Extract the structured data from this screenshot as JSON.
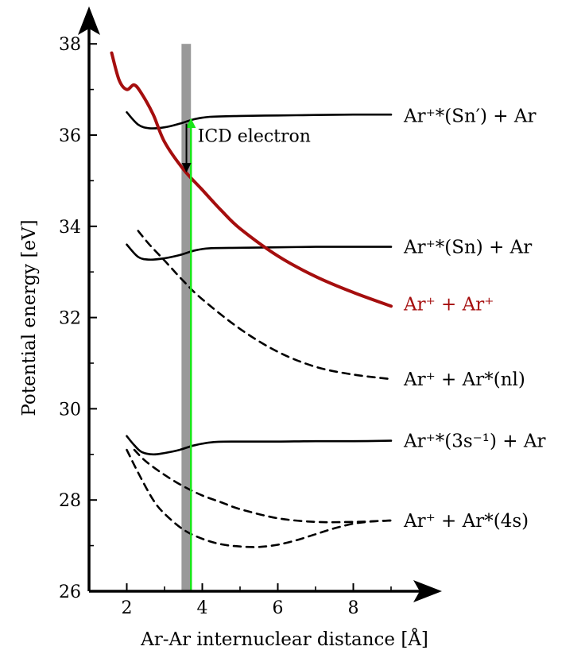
{
  "chart_data": {
    "type": "line",
    "title": "",
    "xlabel": "Ar-Ar internuclear distance [Å]",
    "ylabel": "Potential energy [eV]",
    "xlim": [
      1.0,
      9.8
    ],
    "ylim": [
      26,
      38.4
    ],
    "xticks": [
      2,
      4,
      6,
      8
    ],
    "yticks": [
      26,
      28,
      30,
      32,
      34,
      36,
      38
    ],
    "grid": false,
    "legend": "none",
    "colors": {
      "black": "#000000",
      "red": "#a50e0e",
      "band": "#999999",
      "arrow": "#19e619"
    },
    "series": [
      {
        "name": "Ar⁺* (Sn′) + Ar",
        "style": "solid",
        "color": "#000000",
        "x": [
          2.0,
          2.3,
          2.6,
          3.0,
          3.4,
          3.8,
          4.2,
          5.0,
          6.0,
          7.0,
          8.0,
          9.0
        ],
        "y": [
          36.5,
          36.23,
          36.15,
          36.17,
          36.25,
          36.35,
          36.4,
          36.42,
          36.43,
          36.44,
          36.45,
          36.45
        ]
      },
      {
        "name": "Ar⁺* (Sn) + Ar",
        "style": "solid",
        "color": "#000000",
        "x": [
          2.0,
          2.3,
          2.6,
          3.0,
          3.4,
          3.8,
          4.2,
          5.0,
          6.0,
          7.0,
          8.0,
          9.0
        ],
        "y": [
          33.6,
          33.33,
          33.27,
          33.3,
          33.37,
          33.47,
          33.52,
          33.53,
          33.54,
          33.55,
          33.55,
          33.55
        ]
      },
      {
        "name": "Ar⁺ + Ar⁺",
        "style": "solid",
        "color": "#a50e0e",
        "x": [
          1.6,
          1.8,
          2.0,
          2.2,
          2.4,
          2.7,
          3.0,
          3.5,
          4.0,
          4.5,
          5.0,
          6.0,
          7.0,
          8.0,
          9.0
        ],
        "y": [
          37.8,
          37.2,
          37.0,
          37.1,
          36.9,
          36.45,
          35.85,
          35.25,
          34.8,
          34.35,
          33.95,
          33.35,
          32.9,
          32.55,
          32.25
        ]
      },
      {
        "name": "Ar⁺ + Ar*(nl)",
        "style": "dashed",
        "color": "#000000",
        "x": [
          2.3,
          2.6,
          3.0,
          3.5,
          4.0,
          5.0,
          6.0,
          7.0,
          8.0,
          9.0
        ],
        "y": [
          33.9,
          33.6,
          33.25,
          32.8,
          32.4,
          31.75,
          31.25,
          30.92,
          30.75,
          30.65
        ]
      },
      {
        "name": "Ar⁺* (3s⁻¹) + Ar",
        "style": "solid",
        "color": "#000000",
        "x": [
          2.0,
          2.2,
          2.4,
          2.7,
          3.0,
          3.4,
          3.8,
          4.3,
          5.0,
          6.0,
          7.0,
          8.0,
          9.0
        ],
        "y": [
          29.4,
          29.2,
          29.05,
          29.0,
          29.03,
          29.1,
          29.2,
          29.27,
          29.28,
          29.28,
          29.29,
          29.29,
          29.3
        ]
      },
      {
        "name": "Ar⁺ + Ar*(4s) upper",
        "style": "dashed",
        "color": "#000000",
        "x": [
          2.2,
          2.5,
          3.0,
          3.5,
          4.0,
          4.5,
          5.0,
          6.0,
          7.0,
          8.0,
          9.0
        ],
        "y": [
          29.1,
          28.85,
          28.55,
          28.3,
          28.1,
          27.95,
          27.8,
          27.6,
          27.52,
          27.52,
          27.55
        ]
      },
      {
        "name": "Ar⁺ + Ar*(4s) lower",
        "style": "dashed",
        "color": "#000000",
        "x": [
          2.0,
          2.3,
          2.7,
          3.0,
          3.5,
          4.0,
          4.5,
          5.0,
          5.5,
          6.0,
          6.5,
          7.0,
          7.5,
          8.0,
          8.5,
          9.0
        ],
        "y": [
          29.1,
          28.6,
          28.0,
          27.7,
          27.35,
          27.15,
          27.03,
          26.98,
          26.97,
          27.02,
          27.12,
          27.25,
          27.38,
          27.48,
          27.53,
          27.55
        ]
      }
    ],
    "band": {
      "x_from": 3.45,
      "x_to": 3.7,
      "y_from": 26,
      "y_to": 38.0
    },
    "green_arrow": {
      "x": 3.7,
      "y_from": 26,
      "y_to": 36.35
    },
    "black_arrow": {
      "x": 3.58,
      "y_from": 36.25,
      "y_to": 35.2
    },
    "annotation": {
      "text": "ICD electron",
      "x": 3.75,
      "y": 35.85
    },
    "curve_labels": [
      {
        "text": "Ar⁺*(Sn′) + Ar",
        "y": 36.43,
        "color": "#000000"
      },
      {
        "text": "Ar⁺*(Sn) + Ar",
        "y": 33.55,
        "color": "#000000"
      },
      {
        "text": "Ar⁺ + Ar⁺",
        "y": 32.3,
        "color": "#a50e0e"
      },
      {
        "text": "Ar⁺ + Ar*(nl)",
        "y": 30.65,
        "color": "#000000"
      },
      {
        "text": "Ar⁺*(3s⁻¹) + Ar",
        "y": 29.3,
        "color": "#000000"
      },
      {
        "text": "Ar⁺ + Ar*(4s)",
        "y": 27.55,
        "color": "#000000"
      }
    ]
  }
}
